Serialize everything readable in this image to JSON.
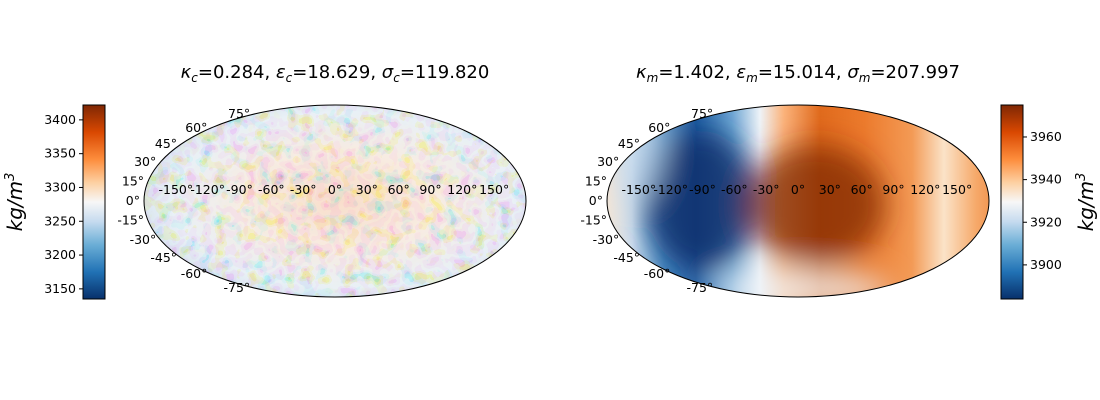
{
  "chart_data": [
    {
      "type": "heatmap",
      "projection": "mollweide",
      "title": "κ_c=0.284, ε_c=18.629, σ_c=119.820",
      "title_parts": {
        "p1": "κ",
        "s1": "c",
        "v1": "=0.284, ",
        "p2": "ε",
        "s2": "c",
        "v2": "=18.629, ",
        "p3": "σ",
        "s3": "c",
        "v3": "=119.820"
      },
      "colorbar": {
        "position": "left",
        "range": [
          3135,
          3422
        ],
        "ticks": [
          "3150",
          "3200",
          "3250",
          "3300",
          "3350",
          "3400"
        ],
        "tick_values": [
          3150,
          3200,
          3250,
          3300,
          3350,
          3400
        ],
        "label": "kg/m3",
        "label_base": "kg/m",
        "label_exp": "3"
      },
      "lon_labels": [
        "-150°",
        "-120°",
        "-90°",
        "-60°",
        "-30°",
        "0°",
        "30°",
        "60°",
        "90°",
        "120°",
        "150°"
      ],
      "lon_values": [
        -150,
        -120,
        -90,
        -60,
        -30,
        0,
        30,
        60,
        90,
        120,
        150
      ],
      "lat_labels": [
        "-75°",
        "-60°",
        "-45°",
        "-30°",
        "-15°",
        "0°",
        "15°",
        "30°",
        "45°",
        "60°",
        "75°"
      ],
      "lat_values": [
        -75,
        -60,
        -45,
        -30,
        -15,
        0,
        15,
        30,
        45,
        60,
        75
      ],
      "pattern": "small-scale noise, warmer (orange) across the central longitudes, cooler (blue) toward the limbs"
    },
    {
      "type": "heatmap",
      "projection": "mollweide",
      "title": "κ_m=1.402, ε_m=15.014, σ_m=207.997",
      "title_parts": {
        "p1": "κ",
        "s1": "m",
        "v1": "=1.402, ",
        "p2": "ε",
        "s2": "m",
        "v2": "=15.014, ",
        "p3": "σ",
        "s3": "m",
        "v3": "=207.997"
      },
      "colorbar": {
        "position": "right",
        "range": [
          3884,
          3975
        ],
        "ticks": [
          "3900",
          "3920",
          "3940",
          "3960"
        ],
        "tick_values": [
          3900,
          3920,
          3940,
          3960
        ],
        "label": "kg/m3",
        "label_base": "kg/m",
        "label_exp": "3"
      },
      "lon_labels": [
        "-150°",
        "-120°",
        "-90°",
        "-60°",
        "-30°",
        "0°",
        "30°",
        "60°",
        "90°",
        "120°",
        "150°"
      ],
      "lon_values": [
        -150,
        -120,
        -90,
        -60,
        -30,
        0,
        30,
        60,
        90,
        120,
        150
      ],
      "lat_labels": [
        "-75°",
        "-60°",
        "-45°",
        "-30°",
        "-15°",
        "0°",
        "15°",
        "30°",
        "45°",
        "60°",
        "75°"
      ],
      "lat_values": [
        -75,
        -60,
        -45,
        -30,
        -15,
        0,
        15,
        30,
        45,
        60,
        75
      ],
      "pattern": "smooth large-scale field: low (blue) centred near lon -100°, high (dark orange) centred near lon 10°"
    }
  ],
  "colormap": [
    "#053061",
    "#2166ac",
    "#4393c3",
    "#92c5de",
    "#d1e5f0",
    "#f7f7f7",
    "#fddbc7",
    "#f4a582",
    "#d6604d",
    "#b2182b",
    "#67001f"
  ],
  "colormap_display": [
    "#08306b",
    "#2172b5",
    "#6baed6",
    "#c6dbef",
    "#f7f7f7",
    "#fdd0a2",
    "#fd8d3c",
    "#d94801",
    "#7f2704"
  ]
}
